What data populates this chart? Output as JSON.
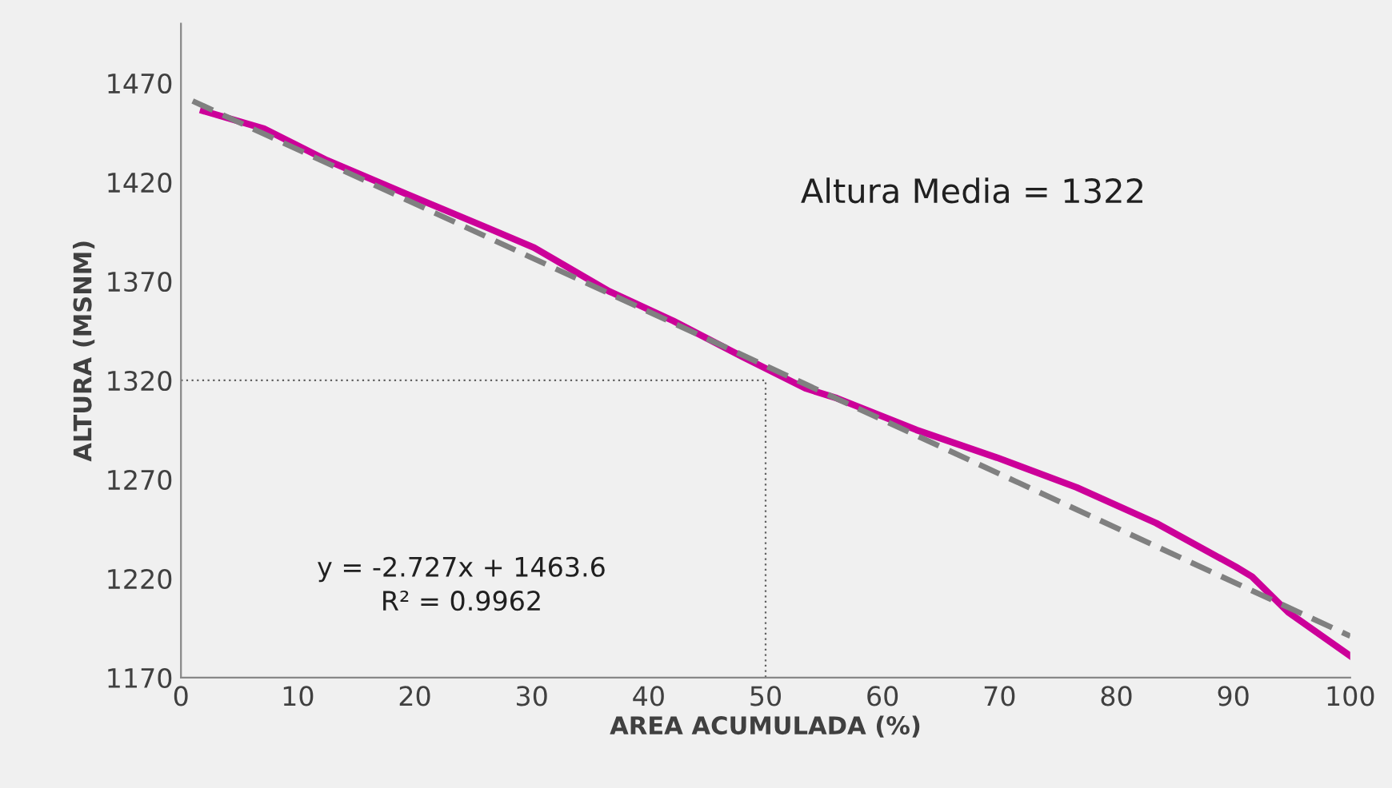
{
  "chart_data": {
    "type": "line",
    "xlabel": "AREA ACUMULADA (%)",
    "ylabel": "ALTURA (MSNM)",
    "annotations": [
      "Altura Media = 1322",
      "y = -2.727x + 1463.6\nR² = 0.9962"
    ],
    "series": [
      {
        "color": "#cc0099",
        "line_style": "solid",
        "x": [
          1.9,
          7.1,
          12.5,
          19.3,
          26.2,
          30.2,
          33.4,
          36.6,
          42.1,
          48,
          53.4,
          56.1,
          62.9,
          69.8,
          76.6,
          83.4,
          90.2,
          91.6,
          94.7,
          100
        ],
        "values": [
          1456,
          1447,
          1431,
          1414,
          1397,
          1387,
          1376,
          1365,
          1350,
          1332,
          1316,
          1311,
          1295,
          1281,
          1266,
          1248,
          1226,
          1221,
          1203,
          1181
        ]
      },
      {
        "color": "#808080",
        "line_style": "dashed",
        "x": [
          1,
          100
        ],
        "values": [
          1461,
          1191
        ]
      },
      {
        "color": "#606060",
        "line_style": "dotted",
        "x": [
          0,
          50,
          50
        ],
        "values": [
          1320,
          1320,
          1170
        ]
      }
    ],
    "xlim": [
      0,
      100
    ],
    "xticks": [
      0,
      10,
      20,
      30,
      40,
      50,
      60,
      70,
      80,
      90,
      100
    ],
    "ylim": [
      1170,
      1500
    ],
    "yticks": [
      1170,
      1220,
      1270,
      1320,
      1370,
      1420,
      1470
    ],
    "grid": false,
    "legend": false,
    "marker": "none"
  }
}
